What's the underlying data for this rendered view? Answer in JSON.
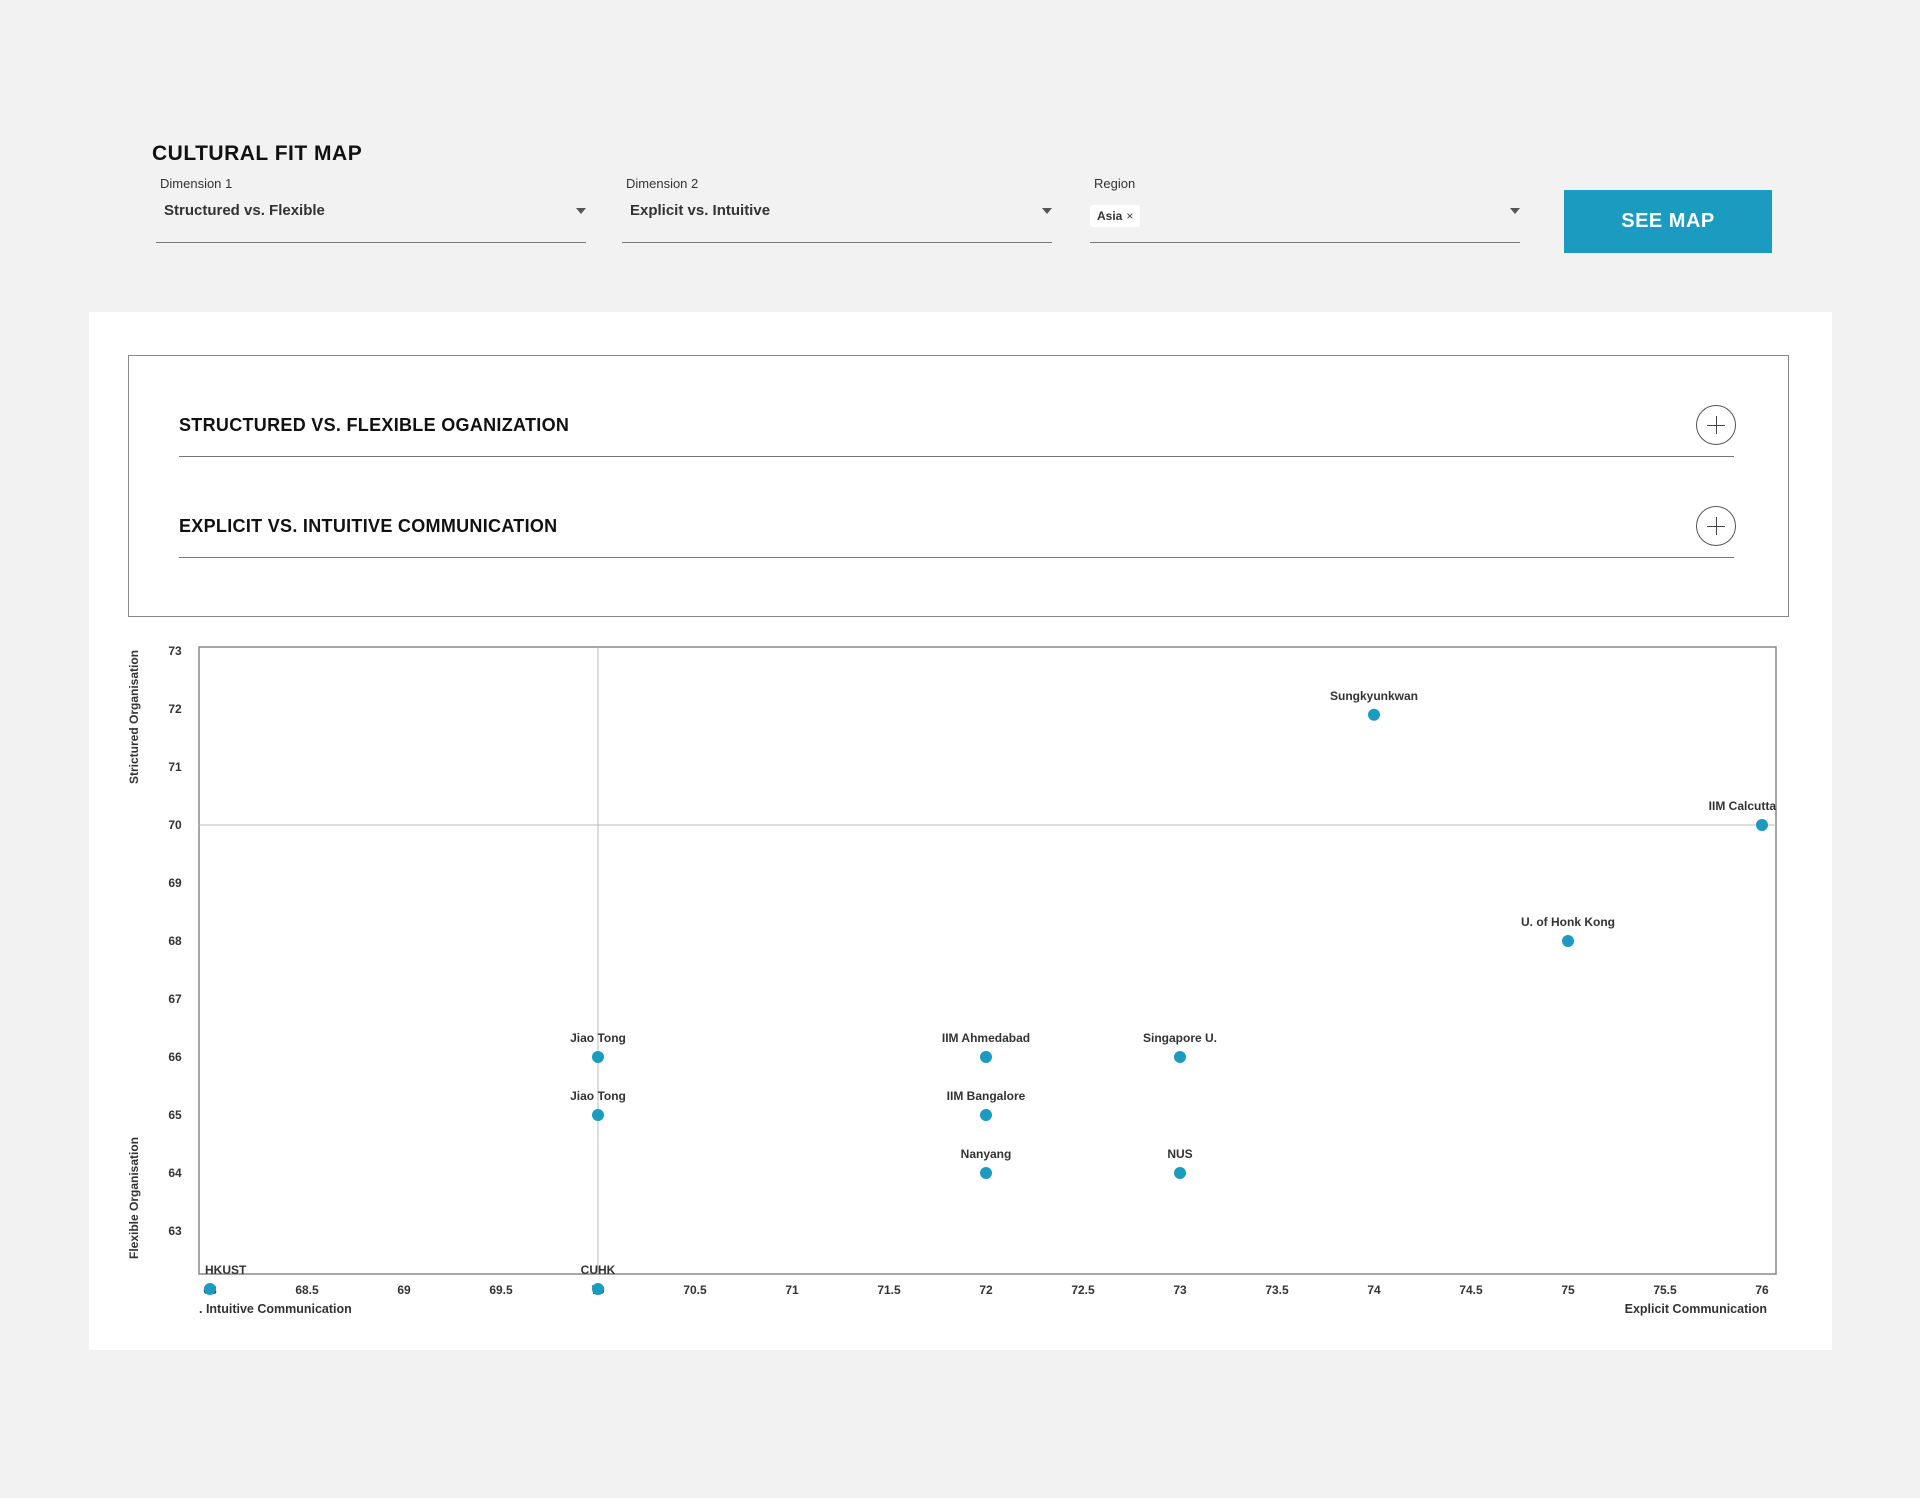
{
  "page": {
    "title": "CULTURAL FIT MAP"
  },
  "filters": {
    "dimension1": {
      "label": "Dimension 1",
      "value": "Structured vs. Flexible"
    },
    "dimension2": {
      "label": "Dimension 2",
      "value": "Explicit vs. Intuitive"
    },
    "region": {
      "label": "Region",
      "chips": [
        "Asia"
      ],
      "chip_remove": "×"
    },
    "submit_label": "SEE MAP"
  },
  "accordion": [
    {
      "title": "STRUCTURED VS. FLEXIBLE OGANIZATION",
      "icon": "plus-icon"
    },
    {
      "title": "EXPLICIT VS. INTUITIVE COMMUNICATION",
      "icon": "plus-icon"
    }
  ],
  "colors": {
    "accent": "#1a9bbf",
    "point": "#1a9bbf",
    "grid": "#bbbbbb"
  },
  "chart_data": {
    "type": "scatter",
    "xlim": [
      67.9,
      76.08
    ],
    "ylim": [
      61.45,
      73.1
    ],
    "x_ticks": [
      "68",
      "68.5",
      "69",
      "69.5",
      "70",
      "70.5",
      "71",
      "71.5",
      "72",
      "72.5",
      "73",
      "73.5",
      "74",
      "74.5",
      "75",
      "75.5",
      "76"
    ],
    "y_ticks": [
      "63",
      "64",
      "65",
      "66",
      "67",
      "68",
      "69",
      "70",
      "71",
      "72",
      "73"
    ],
    "x_axis_labels": {
      "left": ". Intuitive Communication",
      "right": "Explicit Communication"
    },
    "y_axis_labels": {
      "top": "Strictured Organisation",
      "bottom": "Flexible Organisation"
    },
    "crosshair": {
      "x": 70,
      "y": 70
    },
    "points": [
      {
        "label": "Sungkyunkwan",
        "x": 74,
        "y": 71.9
      },
      {
        "label": "IIM Calcutta",
        "x": 76,
        "y": 70
      },
      {
        "label": "U. of Honk Kong",
        "x": 75,
        "y": 68
      },
      {
        "label": "Jiao Tong",
        "x": 70,
        "y": 66
      },
      {
        "label": "Jiao Tong",
        "x": 70,
        "y": 65
      },
      {
        "label": "IIM Ahmedabad",
        "x": 72,
        "y": 66
      },
      {
        "label": "IIM Bangalore",
        "x": 72,
        "y": 65
      },
      {
        "label": "Nanyang",
        "x": 72,
        "y": 64
      },
      {
        "label": "Singapore U.",
        "x": 73,
        "y": 66
      },
      {
        "label": "NUS",
        "x": 73,
        "y": 64
      },
      {
        "label": "HKUST",
        "x": 68,
        "y": 62
      },
      {
        "label": "CUHK",
        "x": 70,
        "y": 62
      }
    ]
  }
}
